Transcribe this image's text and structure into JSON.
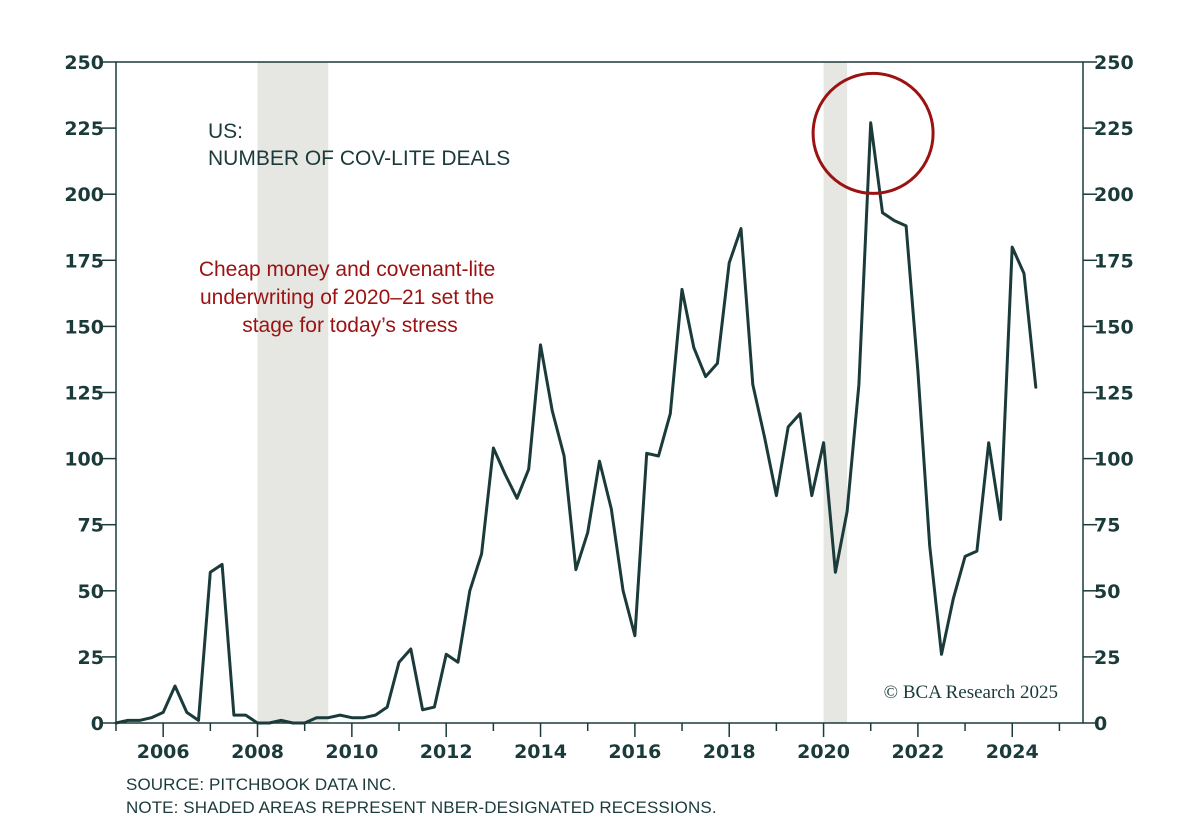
{
  "chart_data": {
    "type": "line",
    "title_lines": [
      "US:",
      "NUMBER OF COV-LITE DEALS"
    ],
    "annotation_lines": [
      "Cheap money and covenant-lite",
      "underwriting of 2020–21 set the",
      "stage for today’s stress"
    ],
    "credit": "© BCA Research 2025",
    "source": "SOURCE: PITCHBOOK DATA INC.",
    "note": "NOTE: SHADED AREAS REPRESENT NBER-DESIGNATED RECESSIONS.",
    "xlim": [
      2005.0,
      2025.5
    ],
    "ylim": [
      0,
      250
    ],
    "xticks": [
      2006,
      2008,
      2010,
      2012,
      2014,
      2016,
      2018,
      2020,
      2022,
      2024
    ],
    "yticks": [
      0,
      25,
      50,
      75,
      100,
      125,
      150,
      175,
      200,
      225,
      250
    ],
    "recessions": [
      [
        2008.0,
        2009.5
      ],
      [
        2020.0,
        2020.5
      ]
    ],
    "highlight": {
      "x": 2021.05,
      "y": 223
    },
    "colors": {
      "line": "#1b3a3a",
      "recession": "#e6e6e3",
      "highlight": "#9b1212",
      "annotation": "#9b1212",
      "axis": "#1b3a3a"
    },
    "series": [
      {
        "x": [
          2005.0,
          2005.25,
          2005.5,
          2005.75,
          2006.0,
          2006.25,
          2006.5,
          2006.75,
          2007.0,
          2007.25,
          2007.5,
          2007.75,
          2008.0,
          2008.25,
          2008.5,
          2008.75,
          2009.0,
          2009.25,
          2009.5,
          2009.75,
          2010.0,
          2010.25,
          2010.5,
          2010.75,
          2011.0,
          2011.25,
          2011.5,
          2011.75,
          2012.0,
          2012.25,
          2012.5,
          2012.75,
          2013.0,
          2013.25,
          2013.5,
          2013.75,
          2014.0,
          2014.25,
          2014.5,
          2014.75,
          2015.0,
          2015.25,
          2015.5,
          2015.75,
          2016.0,
          2016.25,
          2016.5,
          2016.75,
          2017.0,
          2017.25,
          2017.5,
          2017.75,
          2018.0,
          2018.25,
          2018.5,
          2018.75,
          2019.0,
          2019.25,
          2019.5,
          2019.75,
          2020.0,
          2020.25,
          2020.5,
          2020.75,
          2021.0,
          2021.25,
          2021.5,
          2021.75,
          2022.0,
          2022.25,
          2022.5,
          2022.75,
          2023.0,
          2023.25,
          2023.5,
          2023.75,
          2024.0,
          2024.25,
          2024.5
        ],
        "values": [
          0,
          1,
          1,
          2,
          4,
          14,
          4,
          1,
          57,
          60,
          3,
          3,
          0,
          0,
          1,
          0,
          0,
          2,
          2,
          3,
          2,
          2,
          3,
          6,
          23,
          28,
          5,
          6,
          26,
          23,
          50,
          64,
          104,
          94,
          85,
          96,
          143,
          118,
          101,
          58,
          72,
          99,
          81,
          50,
          33,
          102,
          101,
          117,
          164,
          142,
          131,
          136,
          174,
          187,
          128,
          108,
          86,
          112,
          117,
          86,
          106,
          57,
          80,
          128,
          227,
          193,
          190,
          188,
          133,
          67,
          26,
          47,
          63,
          65,
          106,
          77,
          180,
          170,
          127
        ]
      }
    ]
  }
}
